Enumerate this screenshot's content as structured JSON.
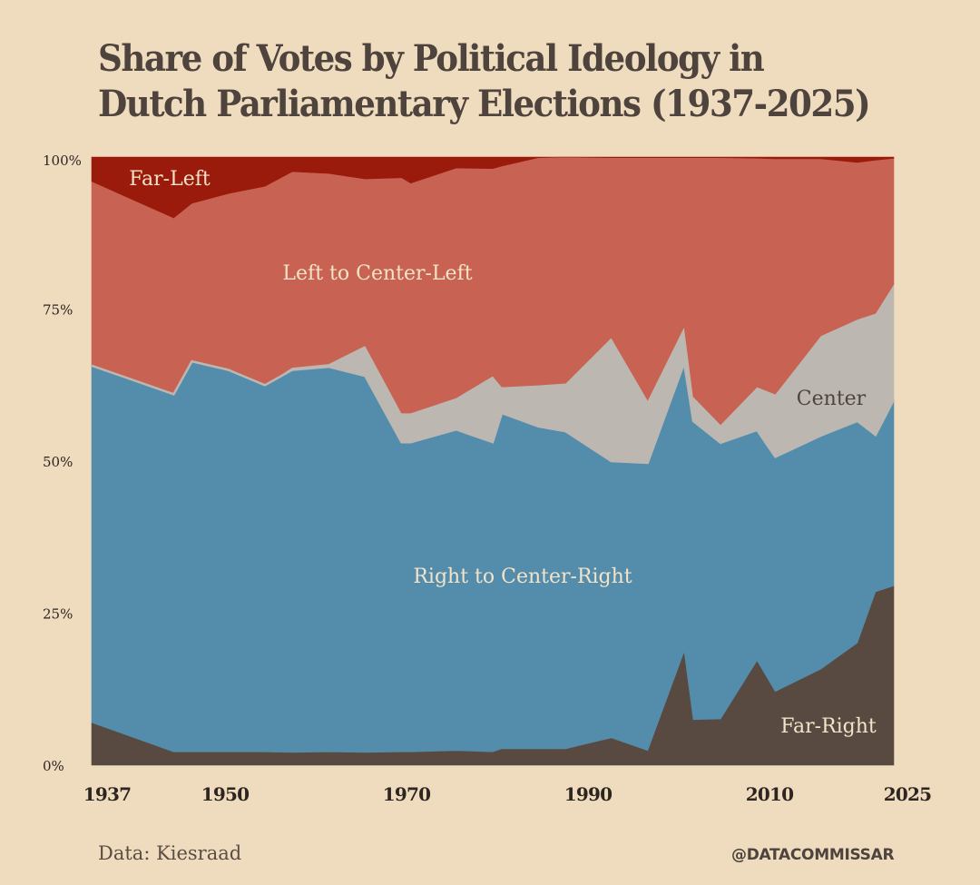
{
  "title_line1": "Share of Votes by Political Ideology in",
  "title_line2": "Dutch Parliamentary Elections (1937-2025)",
  "source": "Data: Kiesraad",
  "handle": "@DATACOMMISSAR",
  "chart_data": {
    "type": "area",
    "stacked": true,
    "title": "Share of Votes by Political Ideology in Dutch Parliamentary Elections (1937-2025)",
    "xlabel": "",
    "ylabel": "",
    "x": [
      1937,
      1946,
      1948,
      1952,
      1956,
      1959,
      1963,
      1967,
      1971,
      1972,
      1977,
      1981,
      1982,
      1986,
      1989,
      1994,
      1998,
      2002,
      2003,
      2006,
      2010,
      2012,
      2017,
      2021,
      2023,
      2025
    ],
    "xlim": [
      1937,
      2025
    ],
    "ylim": [
      0,
      100
    ],
    "xticks": [
      "1937",
      "1950",
      "1970",
      "1990",
      "2010",
      "2025"
    ],
    "xtick_values": [
      1937,
      1950,
      1970,
      1990,
      2010,
      2025
    ],
    "yticks": [
      "0%",
      "25%",
      "50%",
      "75%",
      "100%"
    ],
    "ytick_values": [
      0,
      25,
      50,
      75,
      100
    ],
    "grid": false,
    "legend": "inline-labels",
    "series": [
      {
        "name": "Far-Right",
        "color": "#594a41",
        "label_color": "#f3e3c8",
        "values": [
          7.0,
          2.2,
          2.2,
          2.2,
          2.2,
          2.1,
          2.2,
          2.1,
          2.2,
          2.2,
          2.4,
          2.2,
          2.7,
          2.7,
          2.7,
          4.5,
          2.4,
          18.7,
          7.5,
          7.6,
          17.2,
          12.1,
          15.8,
          20.1,
          28.5,
          29.5
        ]
      },
      {
        "name": "Right to Center-Right",
        "color": "#548dab",
        "label_color": "#f3e3c8",
        "values": [
          58.7,
          58.8,
          64.2,
          62.8,
          60.3,
          62.9,
          63.3,
          61.9,
          50.9,
          50.9,
          52.8,
          50.9,
          55.2,
          53.0,
          52.2,
          45.5,
          47.3,
          47.4,
          49.1,
          45.4,
          37.9,
          38.6,
          38.4,
          36.5,
          25.8,
          30.6
        ]
      },
      {
        "name": "Center",
        "color": "#bdb7b1",
        "label_color": "#4e443d",
        "values": [
          0.0,
          0.0,
          0.0,
          0.0,
          0.0,
          0.4,
          0.5,
          5.0,
          4.8,
          4.8,
          5.2,
          10.9,
          4.3,
          6.8,
          7.9,
          20.3,
          10.3,
          6.0,
          4.0,
          3.0,
          7.1,
          10.3,
          16.4,
          16.7,
          20.0,
          19.0
        ]
      },
      {
        "name": "Left to Center-Left",
        "color": "#c86253",
        "label_color": "#f3e3c8",
        "values": [
          30.3,
          29.0,
          26.0,
          29.0,
          32.7,
          32.2,
          31.3,
          27.4,
          38.7,
          37.8,
          37.8,
          34.1,
          36.3,
          37.4,
          37.2,
          29.6,
          39.9,
          27.8,
          39.3,
          43.9,
          37.6,
          38.7,
          29.1,
          25.8,
          25.2,
          20.7
        ]
      },
      {
        "name": "Far-Left",
        "color": "#9a1a0c",
        "label_color": "#f3e3c8",
        "values": [
          4.0,
          10.0,
          7.6,
          6.0,
          4.8,
          2.4,
          2.7,
          3.6,
          3.4,
          4.3,
          1.8,
          1.9,
          1.5,
          0.1,
          0.0,
          0.1,
          0.1,
          0.1,
          0.1,
          0.1,
          0.2,
          0.3,
          0.3,
          0.9,
          0.5,
          0.2
        ]
      }
    ],
    "annotations": [
      {
        "text": "Far-Left",
        "series": "Far-Left"
      },
      {
        "text": "Left to Center-Left",
        "series": "Left to Center-Left"
      },
      {
        "text": "Center",
        "series": "Center"
      },
      {
        "text": "Right to Center-Right",
        "series": "Right to Center-Right"
      },
      {
        "text": "Far-Right",
        "series": "Far-Right"
      }
    ]
  }
}
